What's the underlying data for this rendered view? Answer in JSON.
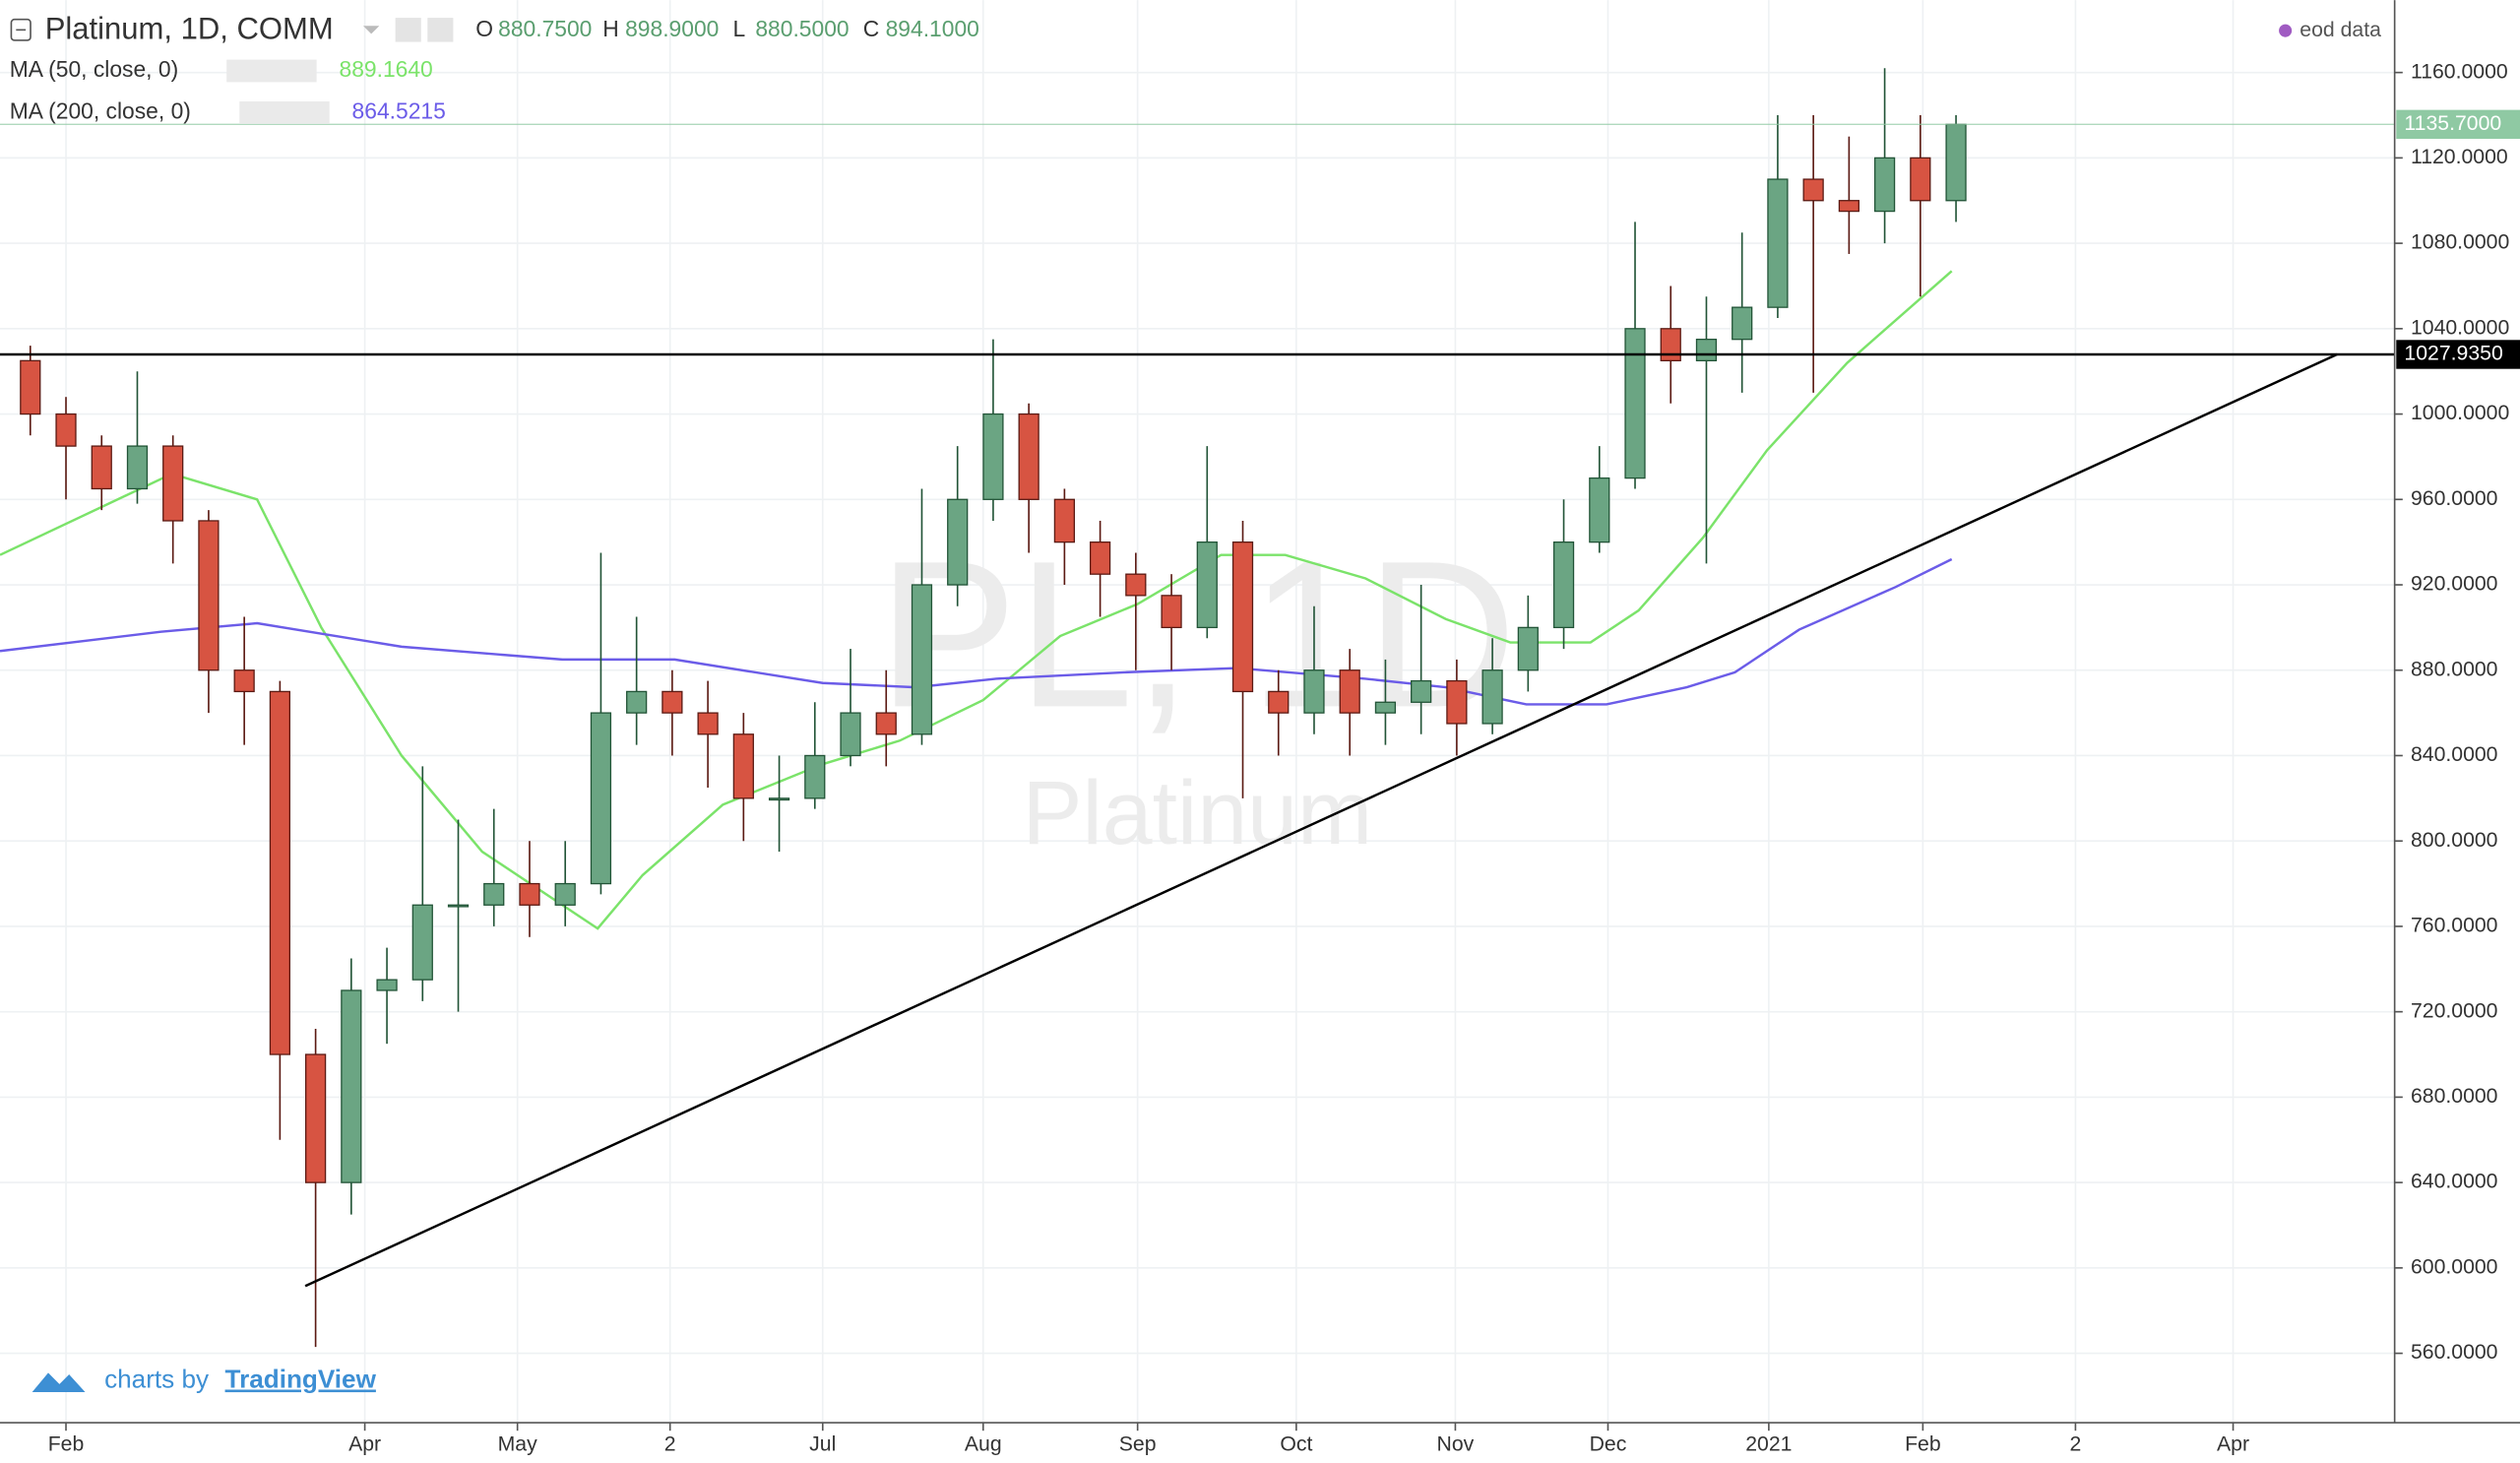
{
  "chart_data": {
    "type": "candlestick",
    "title": "Platinum, 1D, COMM",
    "quote": [
      {
        "label": "O",
        "value": "880.7500"
      },
      {
        "label": "H",
        "value": "898.9000"
      },
      {
        "label": "L",
        "value": "880.5000"
      },
      {
        "label": "C",
        "value": "894.1000"
      }
    ],
    "source": "eod data",
    "watermark": [
      "PL, 1D",
      "Platinum"
    ],
    "branding": [
      "charts by",
      "TradingView"
    ],
    "up_color": "#6ba583",
    "down_color": "#d75442",
    "x": [
      -1,
      0,
      1,
      2,
      3,
      4,
      5,
      6,
      7,
      8,
      9,
      10,
      11,
      12,
      13,
      14,
      15,
      16,
      17,
      18,
      19,
      20,
      21,
      22,
      23,
      24,
      25,
      26,
      27,
      28,
      29,
      30,
      31,
      32,
      33,
      34,
      35,
      36,
      37,
      38,
      39,
      40,
      41,
      42,
      43,
      44,
      45,
      46,
      47,
      48,
      49,
      50,
      51,
      52,
      53
    ],
    "open": [
      1025,
      1000,
      985,
      965,
      985,
      950,
      880,
      870,
      700,
      640,
      730,
      735,
      770,
      770,
      780,
      770,
      780,
      860,
      870,
      860,
      850,
      820,
      820,
      840,
      860,
      850,
      920,
      960,
      1000,
      960,
      940,
      925,
      915,
      900,
      940,
      870,
      860,
      880,
      860,
      865,
      875,
      855,
      880,
      900,
      940,
      970,
      1040,
      1025,
      1035,
      1050,
      1110,
      1100,
      1095,
      1120,
      1100
    ],
    "high": [
      1032,
      1008,
      990,
      1020,
      990,
      955,
      905,
      875,
      712,
      745,
      750,
      835,
      810,
      815,
      800,
      800,
      935,
      905,
      880,
      875,
      860,
      840,
      865,
      890,
      880,
      965,
      985,
      1035,
      1005,
      965,
      950,
      935,
      925,
      985,
      950,
      880,
      910,
      890,
      885,
      920,
      885,
      895,
      915,
      960,
      985,
      1090,
      1060,
      1055,
      1085,
      1140,
      1140,
      1130,
      1162,
      1140,
      1140
    ],
    "low": [
      990,
      960,
      955,
      958,
      930,
      860,
      845,
      660,
      563,
      625,
      705,
      725,
      720,
      760,
      755,
      760,
      775,
      845,
      840,
      825,
      800,
      795,
      815,
      835,
      835,
      845,
      910,
      950,
      935,
      920,
      905,
      880,
      880,
      895,
      820,
      840,
      850,
      840,
      845,
      850,
      840,
      850,
      870,
      890,
      935,
      965,
      1005,
      930,
      1010,
      1045,
      1010,
      1075,
      1080,
      1055,
      1090
    ],
    "close": [
      1000,
      985,
      965,
      985,
      950,
      880,
      870,
      700,
      640,
      730,
      735,
      770,
      770,
      780,
      770,
      780,
      860,
      870,
      860,
      850,
      820,
      820,
      840,
      860,
      850,
      920,
      960,
      1000,
      960,
      940,
      925,
      915,
      900,
      940,
      870,
      860,
      880,
      860,
      865,
      875,
      855,
      880,
      900,
      940,
      970,
      1040,
      1025,
      1035,
      1050,
      1110,
      1100,
      1095,
      1120,
      1100,
      1135.7
    ],
    "overlays": [
      {
        "name": "MA (50, close, 0)",
        "value_label": "889.1640",
        "color": "#7be36a",
        "x": [
          -1.85,
          2.97,
          5.36,
          7.16,
          9.41,
          11.67,
          14.91,
          16.17,
          18.42,
          21.22,
          23.38,
          25.72,
          27.88,
          30.05,
          32.39,
          34.19,
          36.44,
          38.69,
          40.5,
          42.75,
          44.1,
          45.9,
          47.7,
          49.95,
          52.88
        ],
        "values": [
          934,
          972,
          960,
          900,
          840,
          795,
          759,
          784,
          817,
          836,
          847,
          866,
          896,
          911,
          934,
          934,
          923,
          904,
          893,
          893,
          908,
          942,
          983,
          1024,
          1067
        ]
      },
      {
        "name": "MA (200, close, 0)",
        "value_label": "864.5215",
        "color": "#6b5ce8",
        "x": [
          -1.85,
          2.66,
          5.36,
          9.41,
          13.92,
          17.07,
          21.22,
          23.83,
          26.08,
          29.68,
          32.84,
          36.44,
          38.69,
          40.95,
          43.2,
          45.45,
          46.8,
          48.6,
          51.31,
          52.88
        ],
        "values": [
          889,
          898,
          902,
          891,
          885,
          885,
          874,
          872,
          876,
          879,
          881,
          876,
          872,
          864,
          864,
          872,
          879,
          899,
          919,
          932
        ]
      }
    ],
    "hlines": [
      {
        "value": 1027.935,
        "label": "1027.9350",
        "color": "#000000",
        "text_color": "#ffffff"
      },
      {
        "value": 1135.7,
        "label": "1135.7000",
        "color": "#8fc9a3",
        "text_color": "#ffffff"
      }
    ],
    "trendline": {
      "x": [
        6.71,
        63.69
      ],
      "values": [
        591.5,
        1028
      ],
      "color": "#000000"
    },
    "xlim": [
      -1.85,
      65.3
    ],
    "xticks": [
      {
        "value": 0,
        "label": "Feb"
      },
      {
        "value": 8.38,
        "label": "Apr"
      },
      {
        "value": 12.66,
        "label": "May"
      },
      {
        "value": 16.94,
        "label": "2"
      },
      {
        "value": 21.22,
        "label": "Jul"
      },
      {
        "value": 25.72,
        "label": "Aug"
      },
      {
        "value": 30.05,
        "label": "Sep"
      },
      {
        "value": 34.5,
        "label": "Oct"
      },
      {
        "value": 38.96,
        "label": "Nov"
      },
      {
        "value": 43.24,
        "label": "Dec"
      },
      {
        "value": 47.75,
        "label": "2021"
      },
      {
        "value": 52.07,
        "label": "Feb"
      },
      {
        "value": 56.35,
        "label": "2"
      },
      {
        "value": 60.77,
        "label": "Apr"
      }
    ],
    "ylim": [
      527.5,
      1193.9
    ],
    "yticks": [
      {
        "value": 560,
        "label": "560.0000"
      },
      {
        "value": 600,
        "label": "600.0000"
      },
      {
        "value": 640,
        "label": "640.0000"
      },
      {
        "value": 680,
        "label": "680.0000"
      },
      {
        "value": 720,
        "label": "720.0000"
      },
      {
        "value": 760,
        "label": "760.0000"
      },
      {
        "value": 800,
        "label": "800.0000"
      },
      {
        "value": 840,
        "label": "840.0000"
      },
      {
        "value": 880,
        "label": "880.0000"
      },
      {
        "value": 920,
        "label": "920.0000"
      },
      {
        "value": 960,
        "label": "960.0000"
      },
      {
        "value": 1000,
        "label": "1000.0000"
      },
      {
        "value": 1040,
        "label": "1040.0000"
      },
      {
        "value": 1080,
        "label": "1080.0000"
      },
      {
        "value": 1120,
        "label": "1120.0000"
      },
      {
        "value": 1160,
        "label": "1160.0000"
      }
    ],
    "grid": true
  }
}
